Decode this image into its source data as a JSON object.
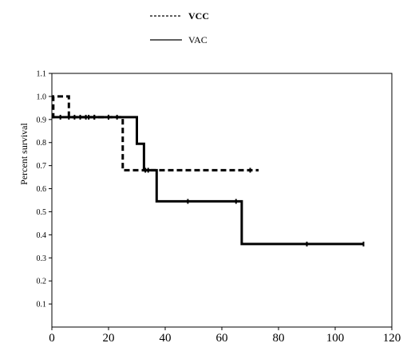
{
  "chart_data": {
    "type": "line",
    "ylabel": "Percent survival",
    "xlabel": "",
    "xlim": [
      0,
      120
    ],
    "ylim": [
      0,
      1.1
    ],
    "xticks": [
      0,
      20,
      40,
      60,
      80,
      100,
      120
    ],
    "yticks": [
      0.1,
      0.2,
      0.3,
      0.4,
      0.5,
      0.6,
      0.7,
      0.8,
      0.9,
      1.0,
      1.1
    ],
    "ytick_labels": [
      "0.1",
      "0.2",
      "0.3",
      "0.4",
      "0.5",
      "0.6",
      "0.7",
      "0.8",
      "0.9",
      "1.0",
      "1.1"
    ],
    "grid": false,
    "legend_position": "top-center",
    "series": [
      {
        "name": "VCC",
        "style": "dashed",
        "color": "#000000",
        "bold_label": true,
        "x": [
          0,
          0.5,
          0.5,
          6,
          6,
          25,
          25,
          73
        ],
        "y": [
          0.91,
          0.91,
          1.0,
          1.0,
          0.91,
          0.91,
          0.68,
          0.68
        ],
        "censor_x": [
          6,
          10,
          12,
          15,
          20,
          23,
          33,
          70
        ],
        "censor_y": [
          0.91,
          0.91,
          0.91,
          0.91,
          0.91,
          0.91,
          0.68,
          0.68
        ]
      },
      {
        "name": "VAC",
        "style": "solid",
        "color": "#000000",
        "bold_label": false,
        "x": [
          0,
          30,
          30,
          32.5,
          32.5,
          37,
          37,
          67,
          67,
          110
        ],
        "y": [
          0.91,
          0.91,
          0.795,
          0.795,
          0.68,
          0.68,
          0.545,
          0.545,
          0.36,
          0.36
        ],
        "censor_x": [
          3,
          8,
          13,
          15,
          20,
          34,
          48,
          65,
          90,
          110
        ],
        "censor_y": [
          0.91,
          0.91,
          0.91,
          0.91,
          0.91,
          0.68,
          0.545,
          0.545,
          0.36,
          0.36
        ]
      }
    ]
  }
}
